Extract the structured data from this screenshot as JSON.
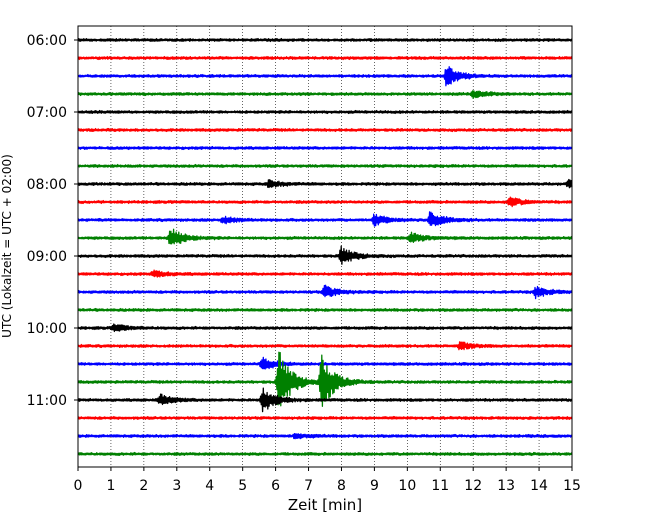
{
  "chart_data": {
    "type": "line",
    "title": "",
    "xlabel": "Zeit  [min]",
    "ylabel": "UTC (Lokalzeit = UTC + 02:00)",
    "xlim": [
      0,
      15
    ],
    "x_ticks": [
      "0",
      "1",
      "2",
      "3",
      "4",
      "5",
      "6",
      "7",
      "8",
      "9",
      "10",
      "11",
      "12",
      "13",
      "14",
      "15"
    ],
    "y_tick_labels": [
      "06:00",
      "07:00",
      "08:00",
      "09:00",
      "10:00",
      "11:00"
    ],
    "trace_interval_minutes": 15,
    "grid": "vertical dotted",
    "color_cycle": [
      "#000000",
      "#ff0000",
      "#0000ff",
      "#008000"
    ],
    "traces": [
      {
        "start": "06:00",
        "events": []
      },
      {
        "start": "06:15",
        "events": []
      },
      {
        "start": "06:30",
        "events": [
          {
            "t": 11.2,
            "amp": 0.6
          }
        ]
      },
      {
        "start": "06:45",
        "events": [
          {
            "t": 12.0,
            "amp": 0.2
          }
        ]
      },
      {
        "start": "07:00",
        "events": []
      },
      {
        "start": "07:15",
        "events": []
      },
      {
        "start": "07:30",
        "events": []
      },
      {
        "start": "07:45",
        "events": []
      },
      {
        "start": "08:00",
        "events": [
          {
            "t": 5.8,
            "amp": 0.2
          },
          {
            "t": 14.9,
            "amp": 0.2
          }
        ]
      },
      {
        "start": "08:15",
        "events": [
          {
            "t": 13.1,
            "amp": 0.25
          }
        ]
      },
      {
        "start": "08:30",
        "events": [
          {
            "t": 4.4,
            "amp": 0.2
          },
          {
            "t": 9.0,
            "amp": 0.3
          },
          {
            "t": 10.7,
            "amp": 0.45
          }
        ]
      },
      {
        "start": "08:45",
        "events": [
          {
            "t": 2.8,
            "amp": 0.6
          },
          {
            "t": 10.1,
            "amp": 0.3
          }
        ]
      },
      {
        "start": "09:00",
        "events": [
          {
            "t": 8.0,
            "amp": 0.5
          }
        ]
      },
      {
        "start": "09:15",
        "events": [
          {
            "t": 2.3,
            "amp": 0.2
          }
        ]
      },
      {
        "start": "09:30",
        "events": [
          {
            "t": 7.5,
            "amp": 0.35
          },
          {
            "t": 13.9,
            "amp": 0.3
          }
        ]
      },
      {
        "start": "09:45",
        "events": []
      },
      {
        "start": "10:00",
        "events": [
          {
            "t": 1.1,
            "amp": 0.2
          }
        ]
      },
      {
        "start": "10:15",
        "events": [
          {
            "t": 11.6,
            "amp": 0.2
          }
        ]
      },
      {
        "start": "10:30",
        "events": [
          {
            "t": 5.6,
            "amp": 0.35
          }
        ]
      },
      {
        "start": "10:45",
        "events": [
          {
            "t": 6.1,
            "amp": 1.8
          },
          {
            "t": 7.4,
            "amp": 1.5
          }
        ]
      },
      {
        "start": "11:00",
        "events": [
          {
            "t": 2.5,
            "amp": 0.3
          },
          {
            "t": 5.6,
            "amp": 0.7
          }
        ]
      },
      {
        "start": "11:15",
        "events": []
      },
      {
        "start": "11:30",
        "events": [
          {
            "t": 6.6,
            "amp": 0.15
          }
        ]
      },
      {
        "start": "11:45",
        "events": []
      }
    ]
  }
}
